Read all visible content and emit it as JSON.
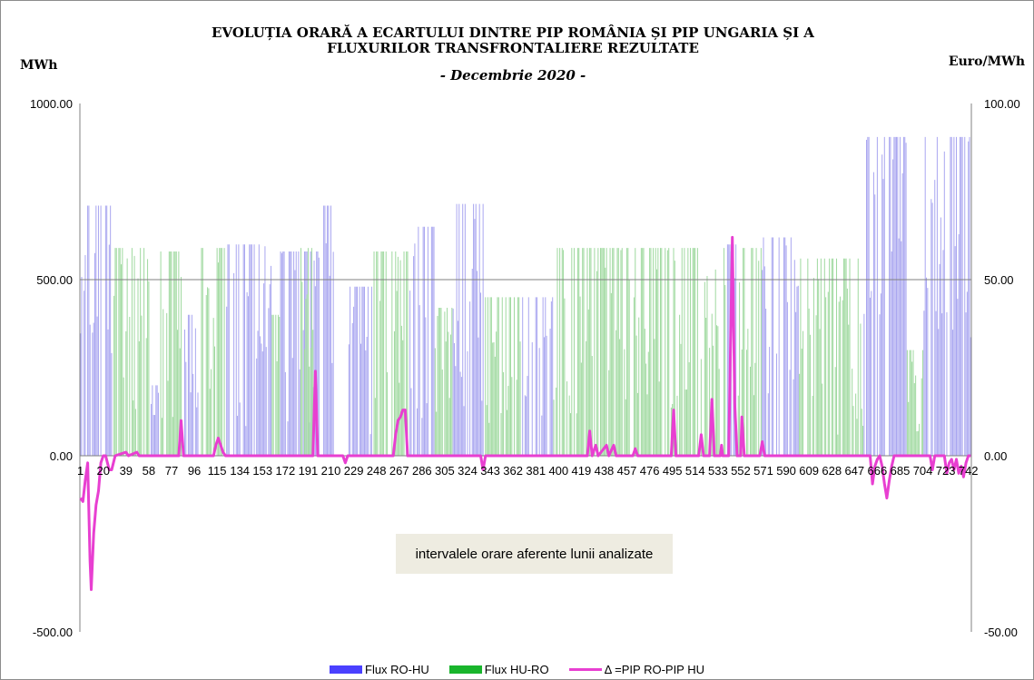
{
  "chart_data": {
    "type": "bar+line",
    "title_lines": [
      "EVOLUȚIA ORARĂ A ECARTULUI DINTRE PIP ROMÂNIA ȘI PIP UNGARIA ȘI A",
      "FLUXURILOR TRANSFRONTALIERE REZULTATE"
    ],
    "subtitle": "- Decembrie  2020 -",
    "ylabel_left": "MWh",
    "ylabel_right": "Euro/MWh",
    "xlabel": "intervalele orare aferente lunii analizate",
    "ylim_left": [
      -500,
      1000
    ],
    "ylim_right": [
      -50,
      100
    ],
    "yticks_left": [
      "1000.00",
      "500.00",
      "0.00",
      "-500.00"
    ],
    "yticks_right": [
      "100.00",
      "50.00",
      "0.00",
      "-50.00"
    ],
    "x_count": 744,
    "xtick_labels": [
      "1",
      "20",
      "39",
      "58",
      "77",
      "96",
      "115",
      "134",
      "153",
      "172",
      "191",
      "210",
      "229",
      "248",
      "267",
      "286",
      "305",
      "324",
      "343",
      "362",
      "381",
      "400",
      "419",
      "438",
      "457",
      "476",
      "495",
      "514",
      "533",
      "552",
      "571",
      "590",
      "609",
      "628",
      "647",
      "666",
      "685",
      "704",
      "723",
      "742"
    ],
    "grid": "horizontal at 500",
    "colors": {
      "flux_ro_hu": "#a9a6f0",
      "flux_hu_ro": "#9fd99f",
      "delta": "#e83fd1",
      "legend_ro_hu": "#4a40ff",
      "legend_hu_ro": "#19b52c",
      "grid": "#808080"
    },
    "series": [
      {
        "name": "Flux RO-HU",
        "axis": "left",
        "kind": "bar",
        "segments": [
          {
            "from": 1,
            "to": 18,
            "base": 710,
            "low": 300
          },
          {
            "from": 22,
            "to": 28,
            "base": 710,
            "low": 250
          },
          {
            "from": 60,
            "to": 66,
            "base": 200,
            "low": 50
          },
          {
            "from": 88,
            "to": 100,
            "base": 400,
            "low": 100
          },
          {
            "from": 122,
            "to": 160,
            "base": 600,
            "low": 80
          },
          {
            "from": 168,
            "to": 200,
            "base": 580,
            "low": 80
          },
          {
            "from": 204,
            "to": 212,
            "base": 710,
            "low": 200
          },
          {
            "from": 225,
            "to": 245,
            "base": 480,
            "low": 60
          },
          {
            "from": 276,
            "to": 296,
            "base": 650,
            "low": 100
          },
          {
            "from": 312,
            "to": 338,
            "base": 715,
            "low": 100
          },
          {
            "from": 370,
            "to": 395,
            "base": 450,
            "low": 80
          },
          {
            "from": 540,
            "to": 548,
            "base": 600,
            "low": 200
          },
          {
            "from": 570,
            "to": 600,
            "base": 620,
            "low": 120
          },
          {
            "from": 655,
            "to": 690,
            "base": 905,
            "low": 400
          },
          {
            "from": 705,
            "to": 744,
            "base": 905,
            "low": 300
          }
        ]
      },
      {
        "name": "Flux HU-RO",
        "axis": "left",
        "kind": "bar",
        "segments": [
          {
            "from": 29,
            "to": 58,
            "base": 590,
            "low": 100
          },
          {
            "from": 68,
            "to": 86,
            "base": 580,
            "low": 100
          },
          {
            "from": 101,
            "to": 121,
            "base": 590,
            "low": 150
          },
          {
            "from": 161,
            "to": 167,
            "base": 400,
            "low": 100
          },
          {
            "from": 185,
            "to": 195,
            "base": 590,
            "low": 200
          },
          {
            "from": 246,
            "to": 275,
            "base": 580,
            "low": 100
          },
          {
            "from": 297,
            "to": 311,
            "base": 420,
            "low": 80
          },
          {
            "from": 339,
            "to": 369,
            "base": 450,
            "low": 80
          },
          {
            "from": 396,
            "to": 539,
            "base": 590,
            "low": 120
          },
          {
            "from": 549,
            "to": 569,
            "base": 590,
            "low": 150
          },
          {
            "from": 601,
            "to": 654,
            "base": 560,
            "low": 60
          },
          {
            "from": 691,
            "to": 704,
            "base": 300,
            "low": 60
          }
        ]
      },
      {
        "name": "Δ =PIP RO-PIP HU",
        "axis": "right",
        "kind": "line",
        "points": [
          [
            1,
            -12
          ],
          [
            3,
            -13
          ],
          [
            5,
            -7
          ],
          [
            7,
            -2
          ],
          [
            9,
            -30
          ],
          [
            10,
            -38
          ],
          [
            12,
            -22
          ],
          [
            14,
            -14
          ],
          [
            16,
            -10
          ],
          [
            18,
            -2
          ],
          [
            20,
            0
          ],
          [
            22,
            0
          ],
          [
            25,
            -4
          ],
          [
            27,
            -4
          ],
          [
            30,
            0
          ],
          [
            39,
            1
          ],
          [
            41,
            0
          ],
          [
            48,
            1
          ],
          [
            50,
            0
          ],
          [
            83,
            0
          ],
          [
            85,
            10
          ],
          [
            87,
            0
          ],
          [
            112,
            0
          ],
          [
            114,
            3
          ],
          [
            116,
            5
          ],
          [
            118,
            3
          ],
          [
            120,
            1
          ],
          [
            122,
            0
          ],
          [
            195,
            0
          ],
          [
            197,
            24
          ],
          [
            199,
            0
          ],
          [
            220,
            0
          ],
          [
            222,
            -2
          ],
          [
            224,
            0
          ],
          [
            262,
            0
          ],
          [
            264,
            6
          ],
          [
            266,
            10
          ],
          [
            268,
            11
          ],
          [
            270,
            13
          ],
          [
            272,
            13
          ],
          [
            274,
            0
          ],
          [
            335,
            0
          ],
          [
            337,
            -4
          ],
          [
            339,
            0
          ],
          [
            424,
            0
          ],
          [
            426,
            7
          ],
          [
            428,
            0
          ],
          [
            431,
            3
          ],
          [
            433,
            0
          ],
          [
            440,
            3
          ],
          [
            442,
            0
          ],
          [
            446,
            3
          ],
          [
            448,
            0
          ],
          [
            462,
            0
          ],
          [
            464,
            2
          ],
          [
            466,
            0
          ],
          [
            494,
            0
          ],
          [
            496,
            13
          ],
          [
            498,
            0
          ],
          [
            517,
            0
          ],
          [
            519,
            6
          ],
          [
            521,
            0
          ],
          [
            526,
            0
          ],
          [
            528,
            16
          ],
          [
            530,
            0
          ],
          [
            535,
            0
          ],
          [
            536,
            3
          ],
          [
            537,
            0
          ],
          [
            542,
            0
          ],
          [
            545,
            62
          ],
          [
            547,
            15
          ],
          [
            549,
            0
          ],
          [
            552,
            0
          ],
          [
            553,
            11
          ],
          [
            555,
            0
          ],
          [
            568,
            0
          ],
          [
            570,
            4
          ],
          [
            572,
            0
          ],
          [
            660,
            0
          ],
          [
            662,
            -8
          ],
          [
            664,
            -3
          ],
          [
            666,
            -1
          ],
          [
            668,
            0
          ],
          [
            670,
            -3
          ],
          [
            672,
            -8
          ],
          [
            674,
            -12
          ],
          [
            676,
            -7
          ],
          [
            678,
            -3
          ],
          [
            680,
            0
          ],
          [
            710,
            0
          ],
          [
            712,
            -4
          ],
          [
            714,
            0
          ],
          [
            722,
            0
          ],
          [
            724,
            -5
          ],
          [
            726,
            -2
          ],
          [
            728,
            -1
          ],
          [
            730,
            -4
          ],
          [
            732,
            -1
          ],
          [
            734,
            -5
          ],
          [
            736,
            -3
          ],
          [
            738,
            -6
          ],
          [
            740,
            -2
          ],
          [
            742,
            0
          ],
          [
            744,
            0
          ]
        ]
      }
    ],
    "legend": [
      "Flux RO-HU",
      "Flux HU-RO",
      "Δ =PIP RO-PIP HU"
    ],
    "legend_position": "bottom"
  }
}
